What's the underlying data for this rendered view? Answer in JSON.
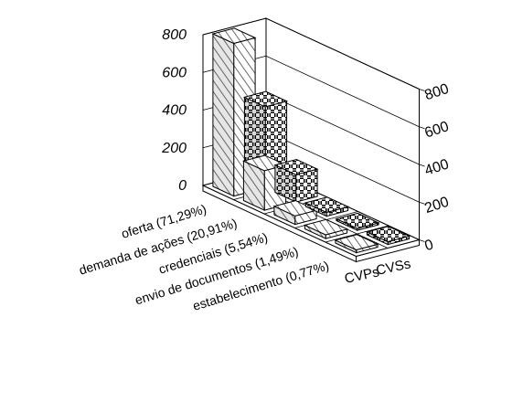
{
  "chart_data": {
    "type": "bar",
    "categories": [
      "oferta (71,29%)",
      "demanda de ações  (20,91%)",
      "credenciais (5,54%)",
      "envio de documentos  (1,49%)",
      "estabelecimento (0,77%)"
    ],
    "series": [
      {
        "name": "CVPs",
        "values": [
          810,
          210,
          45,
          20,
          15
        ],
        "pattern": "diagonal-hatch"
      },
      {
        "name": "CVSs",
        "values": [
          430,
          145,
          20,
          10,
          15
        ],
        "pattern": "checker-weave"
      }
    ],
    "ylim": [
      0,
      800
    ],
    "y_ticks": [
      "0",
      "200",
      "400",
      "600",
      "800"
    ],
    "grid": true,
    "colors": {
      "box": "#ffffff",
      "outline": "#000000",
      "hatch": "#444444",
      "weave": "#000000"
    }
  }
}
